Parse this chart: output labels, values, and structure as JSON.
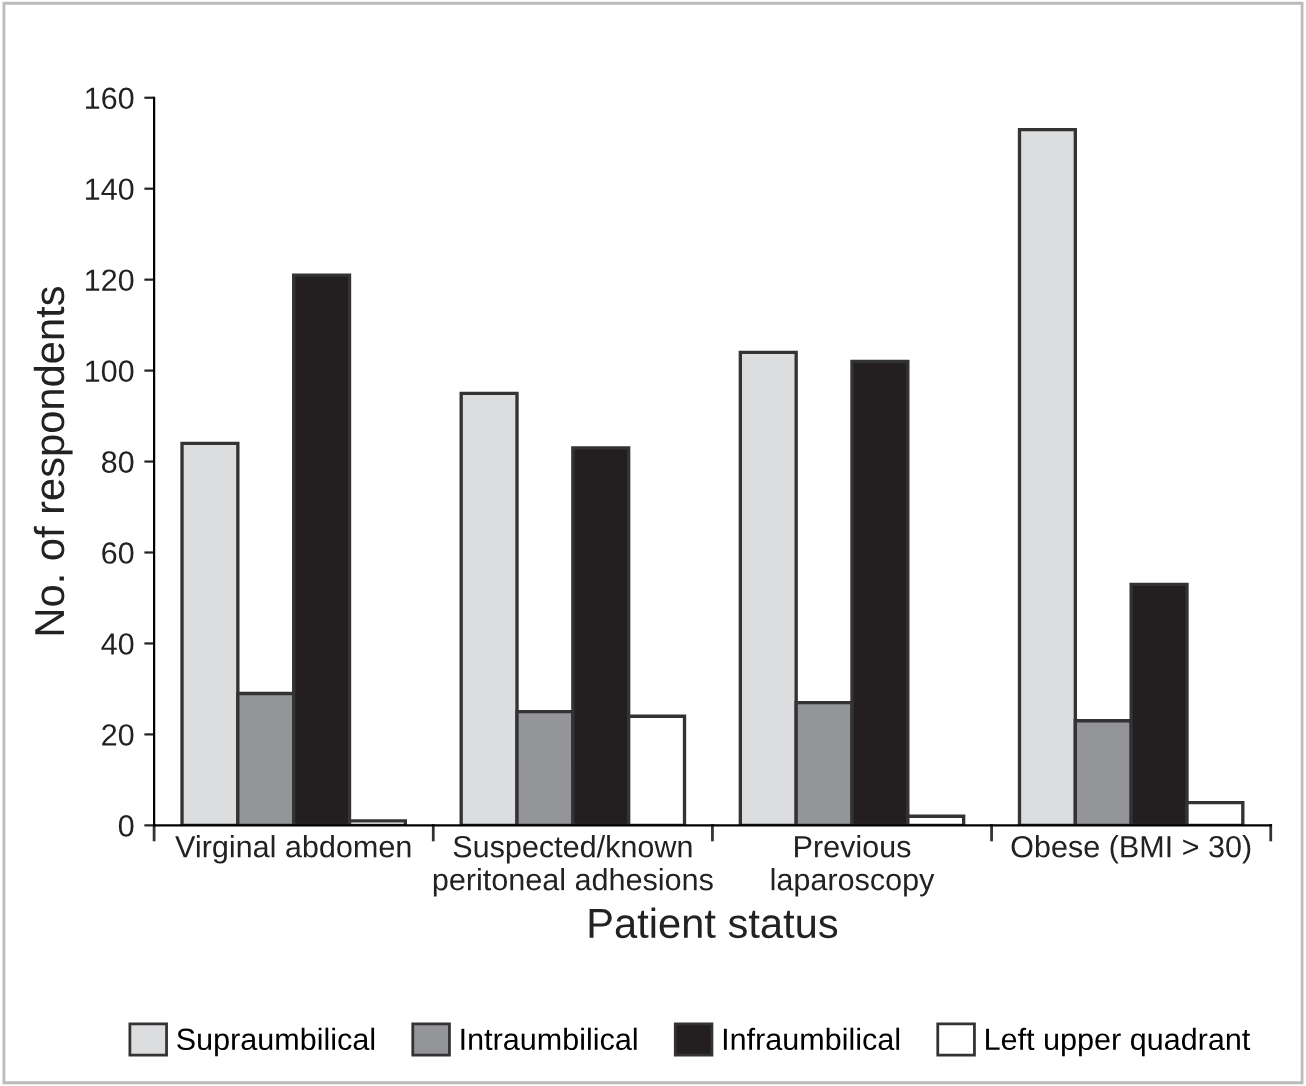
{
  "chart_data": {
    "type": "bar",
    "xlabel": "Patient status",
    "ylabel": "No. of respondents",
    "categories": [
      "Virginal abdomen",
      "Suspected/known\nperitoneal adhesions",
      "Previous\nlaparoscopy",
      "Obese (BMI > 30)"
    ],
    "series": [
      {
        "name": "Supraumbilical",
        "color": "#dcdddf",
        "values": [
          84,
          95,
          104,
          153
        ]
      },
      {
        "name": "Intraumbilical",
        "color": "#949598",
        "values": [
          29,
          25,
          27,
          23
        ]
      },
      {
        "name": "Infraumbilical",
        "color": "#231f20",
        "values": [
          121,
          83,
          102,
          53
        ]
      },
      {
        "name": "Left upper quadrant",
        "color": "#ffffff",
        "values": [
          1,
          24,
          2,
          5
        ]
      }
    ],
    "ylim": [
      0,
      160
    ],
    "yticks": [
      0,
      20,
      40,
      60,
      80,
      100,
      120,
      140,
      160
    ],
    "grid": false,
    "legend": "bottom"
  }
}
